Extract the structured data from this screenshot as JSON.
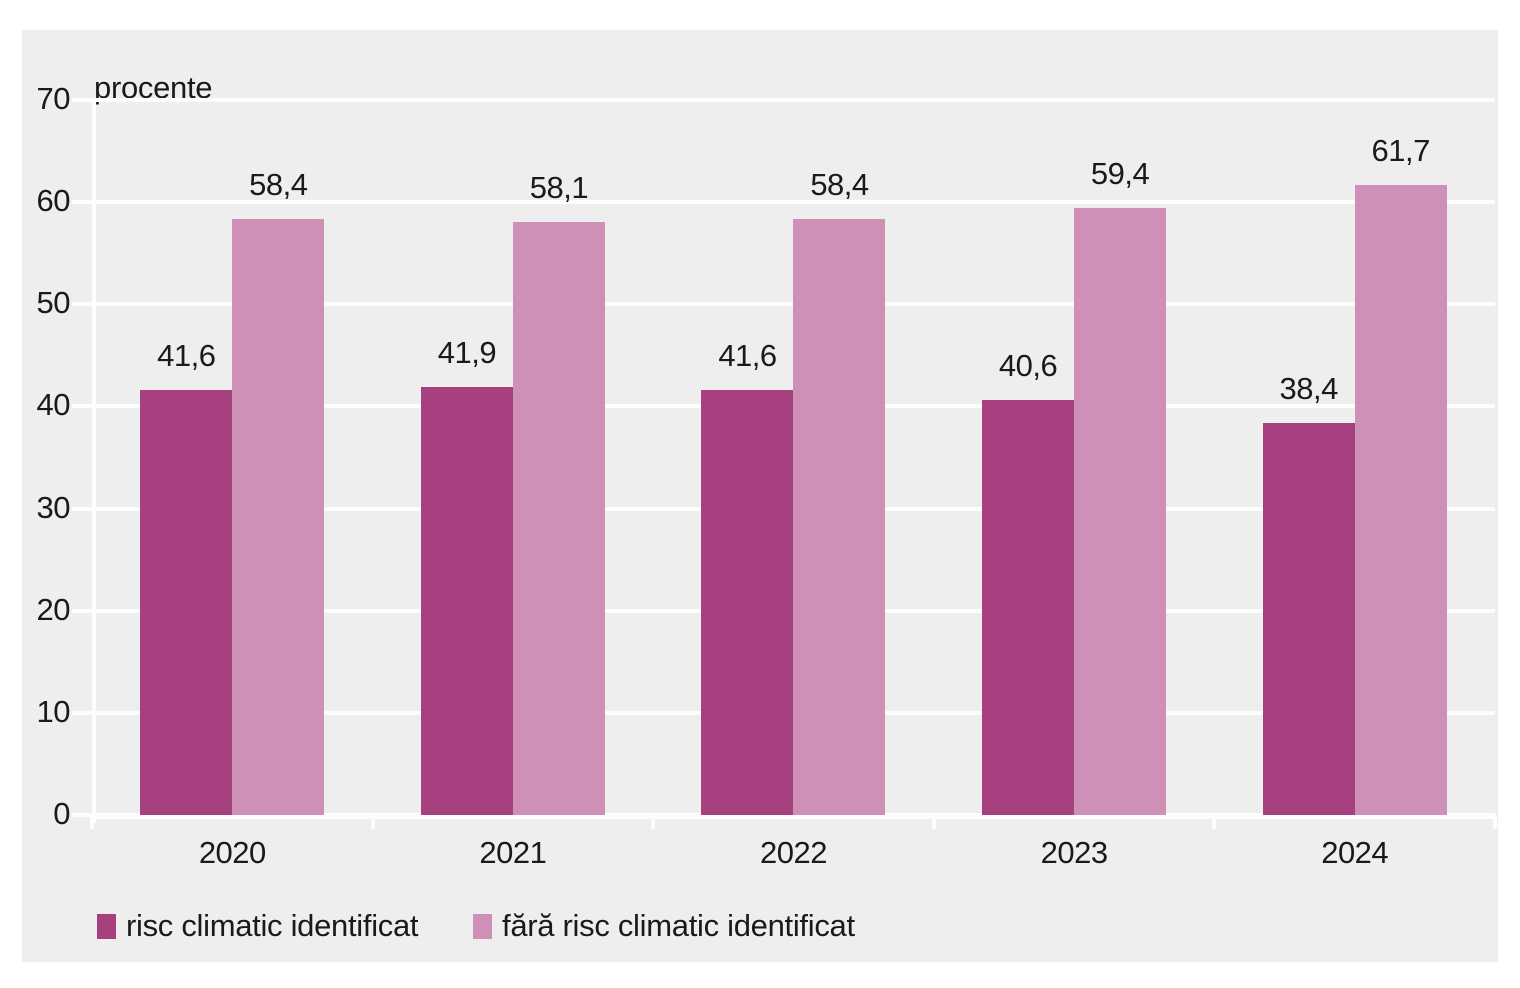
{
  "chart_data": {
    "type": "bar",
    "title": "",
    "ylabel": "procente",
    "xlabel": "",
    "categories": [
      "2020",
      "2021",
      "2022",
      "2023",
      "2024"
    ],
    "series": [
      {
        "name": "risc climatic identificat",
        "color": "#a7407e",
        "values": [
          41.6,
          41.9,
          41.6,
          40.6,
          38.4
        ],
        "value_labels": [
          "41,6",
          "41,9",
          "41,6",
          "40,6",
          "38,4"
        ]
      },
      {
        "name": "fără risc climatic identificat",
        "color": "#cf90b7",
        "values": [
          58.4,
          58.1,
          58.4,
          59.4,
          61.7
        ],
        "value_labels": [
          "58,4",
          "58,1",
          "58,4",
          "59,4",
          "61,7"
        ]
      }
    ],
    "ylim": [
      0,
      70
    ],
    "yticks": [
      0,
      10,
      20,
      30,
      40,
      50,
      60,
      70
    ],
    "grid": "horizontal",
    "gridline_color": "#fdfdfd",
    "plot_background": "#efeeee",
    "page_background": "#ffffff",
    "text_color": "#1a1a1a",
    "legend_position": "bottom-left"
  },
  "legend": {
    "items": [
      {
        "label": "risc climatic identificat",
        "color": "#a7407e"
      },
      {
        "label": "fără risc climatic identificat",
        "color": "#cf90b7"
      }
    ]
  }
}
